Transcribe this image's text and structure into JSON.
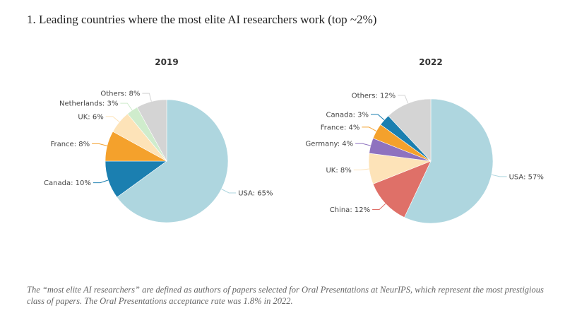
{
  "page": {
    "title": "1. Leading countries where the most elite AI researchers work (top ~2%)",
    "note": "The “most elite AI researchers” are defined as authors of papers selected for Oral Presentations at NeurIPS, which represent the most prestigious class of papers. The Oral Presentations acceptance rate was 1.8% in 2022."
  },
  "chart_data": [
    {
      "type": "pie",
      "title": "2019",
      "unit": "%",
      "slices": [
        {
          "label": "USA",
          "value": 65,
          "color": "#aed6df"
        },
        {
          "label": "Canada",
          "value": 10,
          "color": "#1b7fb0"
        },
        {
          "label": "France",
          "value": 8,
          "color": "#f4a12c"
        },
        {
          "label": "UK",
          "value": 6,
          "color": "#fde3b8"
        },
        {
          "label": "Netherlands",
          "value": 3,
          "color": "#cfeccc"
        },
        {
          "label": "Others",
          "value": 8,
          "color": "#d4d4d4"
        }
      ]
    },
    {
      "type": "pie",
      "title": "2022",
      "unit": "%",
      "slices": [
        {
          "label": "USA",
          "value": 57,
          "color": "#aed6df"
        },
        {
          "label": "China",
          "value": 12,
          "color": "#df7068"
        },
        {
          "label": "UK",
          "value": 8,
          "color": "#fde3b8"
        },
        {
          "label": "Germany",
          "value": 4,
          "color": "#8e72bf"
        },
        {
          "label": "France",
          "value": 4,
          "color": "#f4a12c"
        },
        {
          "label": "Canada",
          "value": 3,
          "color": "#1b7fb0"
        },
        {
          "label": "Others",
          "value": 12,
          "color": "#d4d4d4"
        }
      ]
    }
  ]
}
